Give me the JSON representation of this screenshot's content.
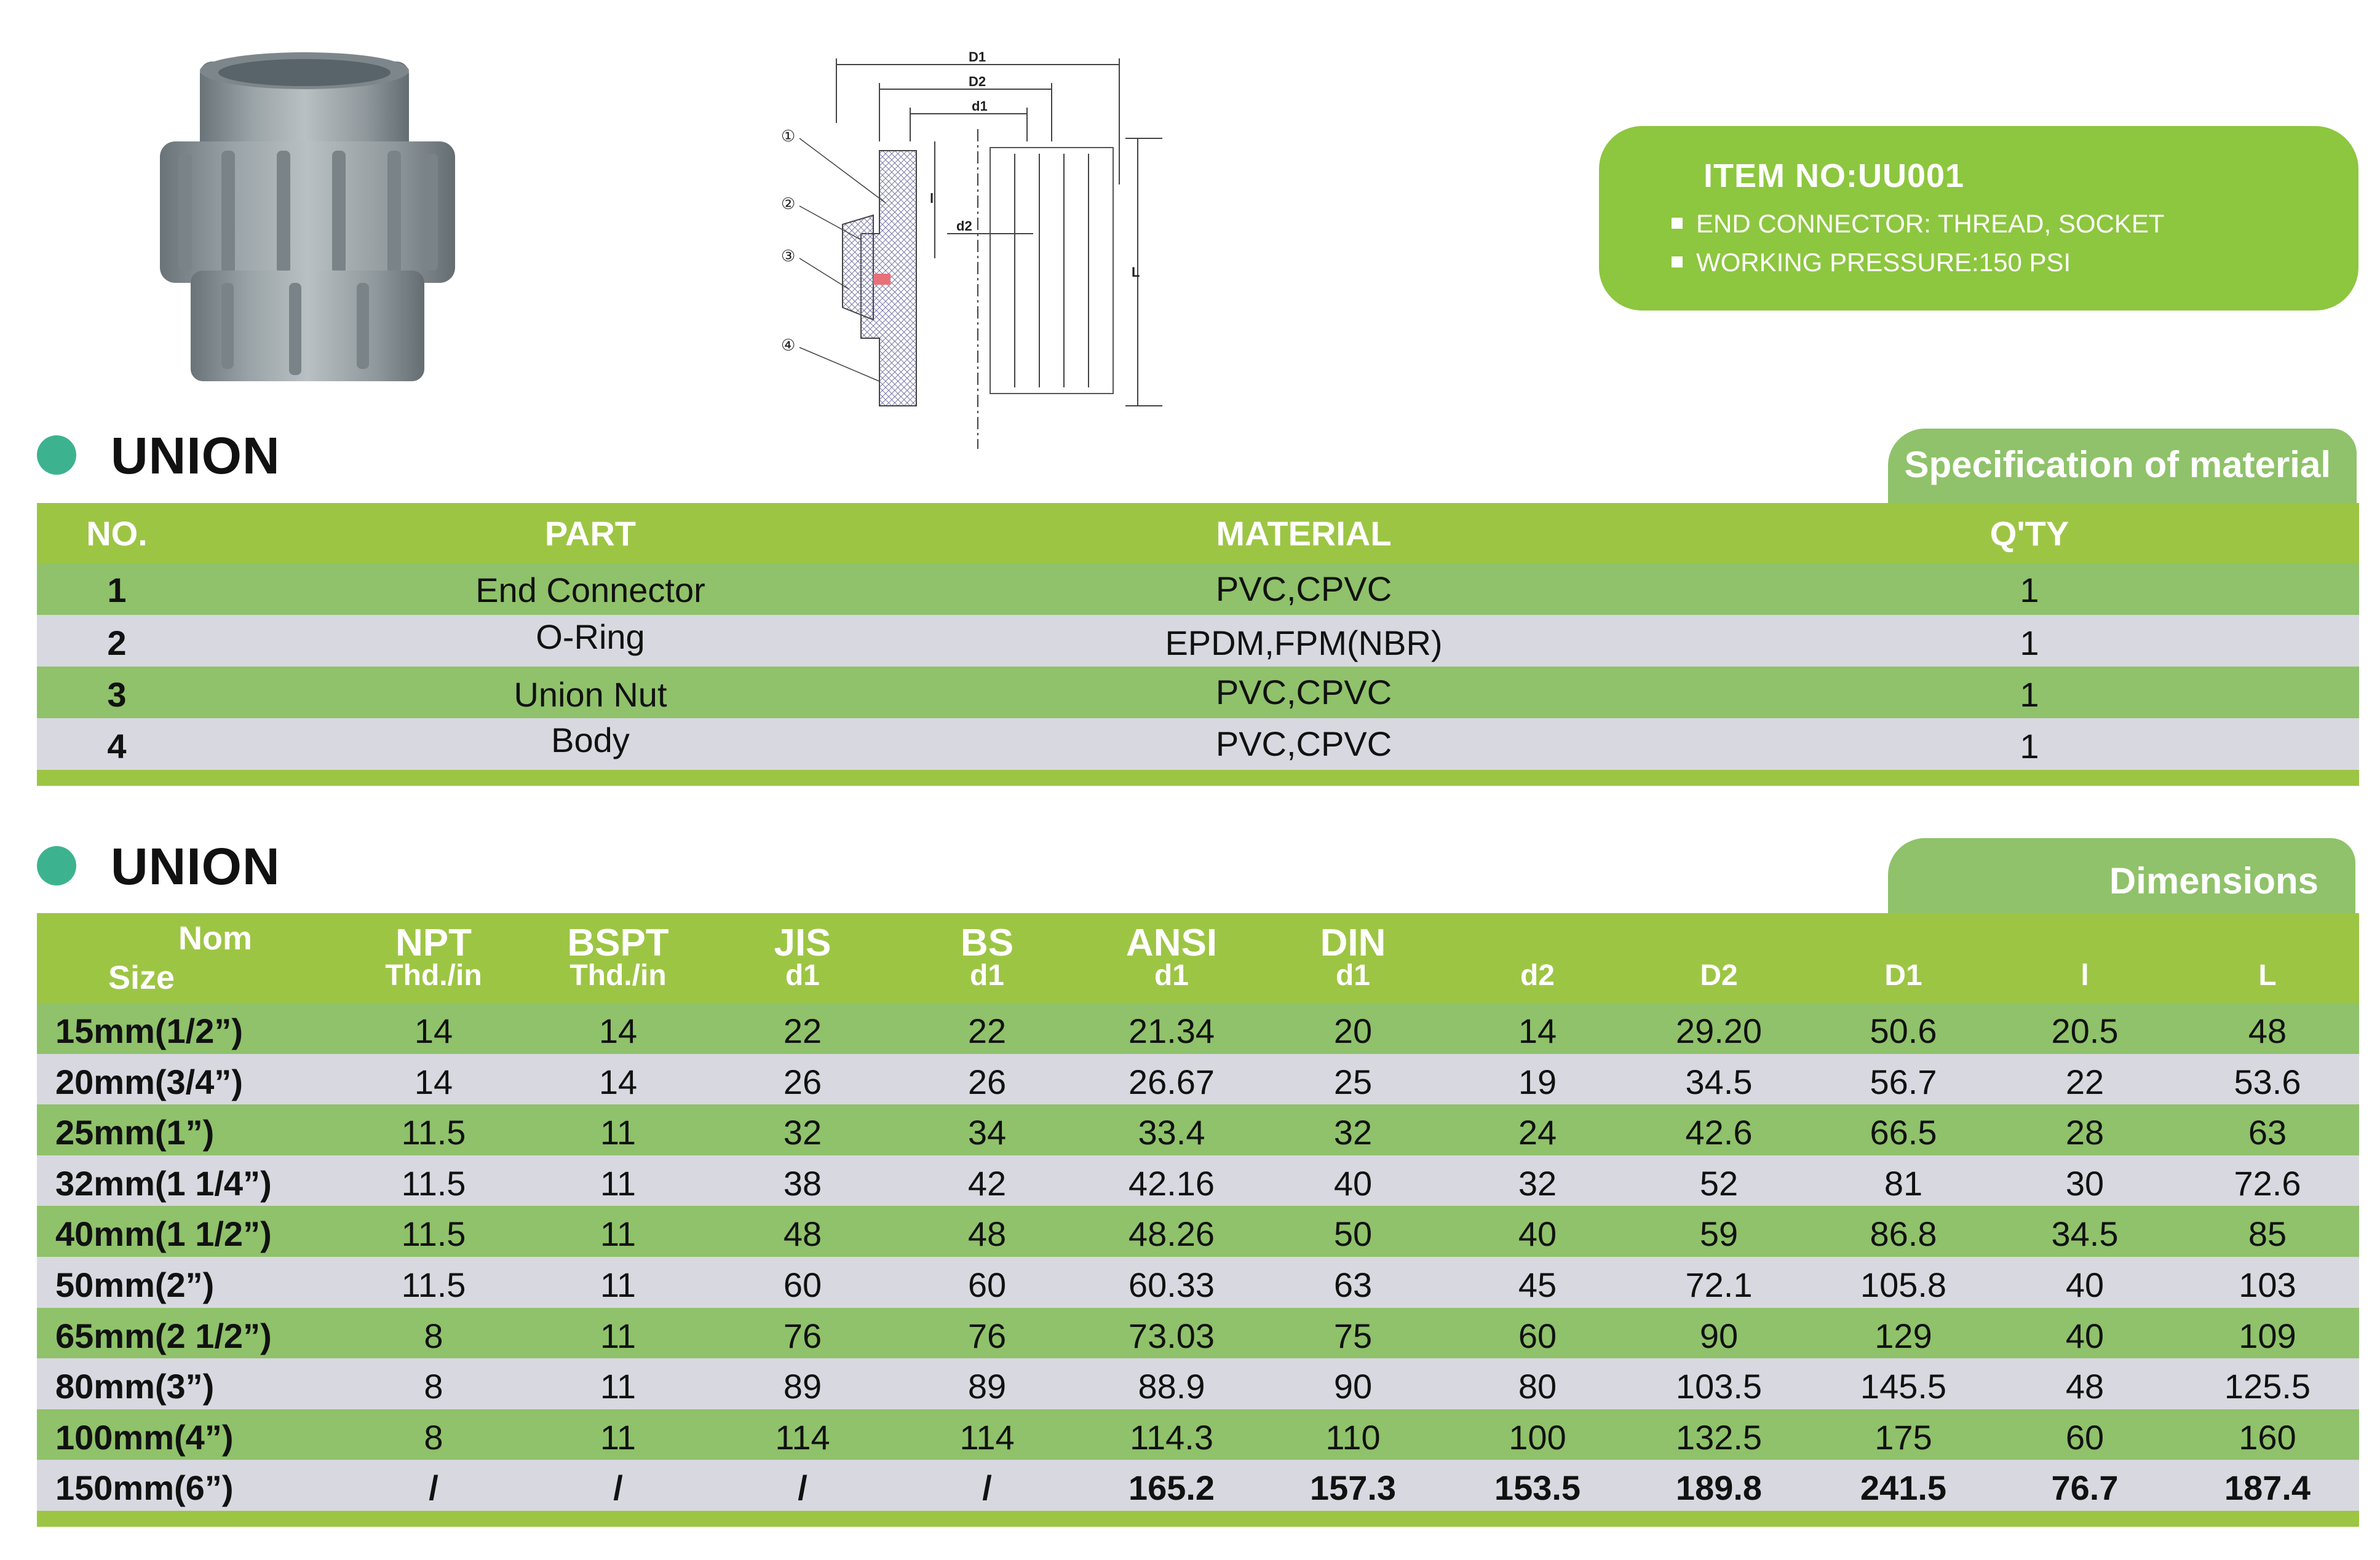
{
  "item_box": {
    "title": "ITEM  NO:UU001",
    "lines": [
      "END CONNECTOR: THREAD, SOCKET",
      "WORKING PRESSURE:150 PSI"
    ]
  },
  "drawing": {
    "labels": {
      "D1": "D1",
      "D2": "D2",
      "d1": "d1",
      "d2": "d2",
      "l": "l",
      "L": "L"
    },
    "callouts": [
      "①",
      "②",
      "③",
      "④"
    ]
  },
  "section1": {
    "title": "UNION",
    "tab": "Specification of material"
  },
  "material_table": {
    "headers": [
      "NO.",
      "PART",
      "MATERIAL",
      "Q'TY"
    ],
    "rows": [
      [
        "1",
        "End  Connector",
        "PVC,CPVC",
        "1"
      ],
      [
        "2",
        "O-Ring",
        "EPDM,FPM(NBR)",
        "1"
      ],
      [
        "3",
        "Union  Nut",
        "PVC,CPVC",
        "1"
      ],
      [
        "4",
        "Body",
        "PVC,CPVC",
        "1"
      ]
    ]
  },
  "section2": {
    "title": "UNION",
    "tab": "Dimensions"
  },
  "dimension_table": {
    "headers": [
      [
        "Nom",
        "Size"
      ],
      [
        "NPT",
        "Thd./in"
      ],
      [
        "BSPT",
        "Thd./in"
      ],
      [
        "JIS",
        "d1"
      ],
      [
        "BS",
        "d1"
      ],
      [
        "ANSI",
        "d1"
      ],
      [
        "DIN",
        "d1"
      ],
      [
        "",
        "d2"
      ],
      [
        "",
        "D2"
      ],
      [
        "",
        "D1"
      ],
      [
        "",
        "l"
      ],
      [
        "",
        "L"
      ]
    ],
    "rows": [
      [
        "15mm(1/2”)",
        "14",
        "14",
        "22",
        "22",
        "21.34",
        "20",
        "14",
        "29.20",
        "50.6",
        "20.5",
        "48"
      ],
      [
        "20mm(3/4”)",
        "14",
        "14",
        "26",
        "26",
        "26.67",
        "25",
        "19",
        "34.5",
        "56.7",
        "22",
        "53.6"
      ],
      [
        "25mm(1”)",
        "11.5",
        "11",
        "32",
        "34",
        "33.4",
        "32",
        "24",
        "42.6",
        "66.5",
        "28",
        "63"
      ],
      [
        "32mm(1 1/4”)",
        "11.5",
        "11",
        "38",
        "42",
        "42.16",
        "40",
        "32",
        "52",
        "81",
        "30",
        "72.6"
      ],
      [
        "40mm(1 1/2”)",
        "11.5",
        "11",
        "48",
        "48",
        "48.26",
        "50",
        "40",
        "59",
        "86.8",
        "34.5",
        "85"
      ],
      [
        "50mm(2”)",
        "11.5",
        "11",
        "60",
        "60",
        "60.33",
        "63",
        "45",
        "72.1",
        "105.8",
        "40",
        "103"
      ],
      [
        "65mm(2 1/2”)",
        "8",
        "11",
        "76",
        "76",
        "73.03",
        "75",
        "60",
        "90",
        "129",
        "40",
        "109"
      ],
      [
        "80mm(3”)",
        "8",
        "11",
        "89",
        "89",
        "88.9",
        "90",
        "80",
        "103.5",
        "145.5",
        "48",
        "125.5"
      ],
      [
        "100mm(4”)",
        "8",
        "11",
        "114",
        "114",
        "114.3",
        "110",
        "100",
        "132.5",
        "175",
        "60",
        "160"
      ],
      [
        "150mm(6”)",
        "/",
        "/",
        "/",
        "/",
        "165.2",
        "157.3",
        "153.5",
        "189.8",
        "241.5",
        "76.7",
        "187.4"
      ]
    ]
  }
}
